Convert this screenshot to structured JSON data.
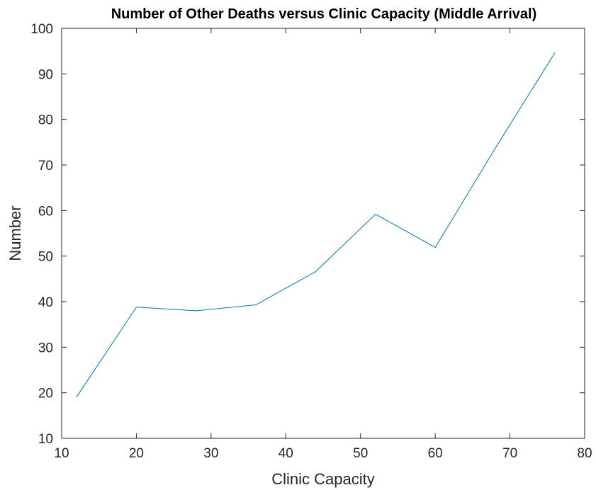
{
  "chart_data": {
    "type": "line",
    "title": "Number of Other Deaths versus Clinic Capacity (Middle Arrival)",
    "xlabel": "Clinic Capacity",
    "ylabel": "Number",
    "xlim": [
      10,
      80
    ],
    "ylim": [
      10,
      100
    ],
    "xticks": [
      "10",
      "20",
      "30",
      "40",
      "50",
      "60",
      "70",
      "80"
    ],
    "yticks": [
      "10",
      "20",
      "30",
      "40",
      "50",
      "60",
      "70",
      "80",
      "90",
      "100"
    ],
    "grid": false,
    "legend": false,
    "series": [
      {
        "color": "#0072bd",
        "x": [
          12,
          20,
          28,
          36,
          44,
          52,
          60,
          68,
          76
        ],
        "y": [
          19.1,
          38.8,
          38.0,
          39.3,
          46.6,
          59.2,
          51.9,
          73.6,
          94.6
        ]
      }
    ]
  }
}
